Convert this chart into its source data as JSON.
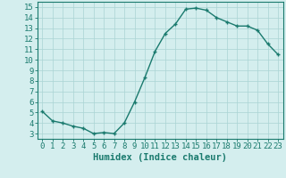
{
  "x": [
    0,
    1,
    2,
    3,
    4,
    5,
    6,
    7,
    8,
    9,
    10,
    11,
    12,
    13,
    14,
    15,
    16,
    17,
    18,
    19,
    20,
    21,
    22,
    23
  ],
  "y": [
    5.1,
    4.2,
    4.0,
    3.7,
    3.5,
    3.0,
    3.1,
    3.0,
    4.0,
    6.0,
    8.3,
    10.8,
    12.5,
    13.4,
    14.8,
    14.9,
    14.7,
    14.0,
    13.6,
    13.2,
    13.2,
    12.8,
    11.5,
    10.5
  ],
  "line_color": "#1a7a6e",
  "marker": "+",
  "bg_color": "#d4eeee",
  "grid_color": "#aad4d4",
  "xlabel": "Humidex (Indice chaleur)",
  "xlim": [
    -0.5,
    23.5
  ],
  "ylim": [
    2.5,
    15.5
  ],
  "yticks": [
    3,
    4,
    5,
    6,
    7,
    8,
    9,
    10,
    11,
    12,
    13,
    14,
    15
  ],
  "xtick_labels": [
    "0",
    "1",
    "2",
    "3",
    "4",
    "5",
    "6",
    "7",
    "8",
    "9",
    "10",
    "11",
    "12",
    "13",
    "14",
    "15",
    "16",
    "17",
    "18",
    "19",
    "20",
    "21",
    "22",
    "23"
  ],
  "tick_fontsize": 6.5,
  "xlabel_fontsize": 7.5,
  "linewidth": 1.0,
  "markersize": 3.5,
  "markerwidth": 1.0
}
